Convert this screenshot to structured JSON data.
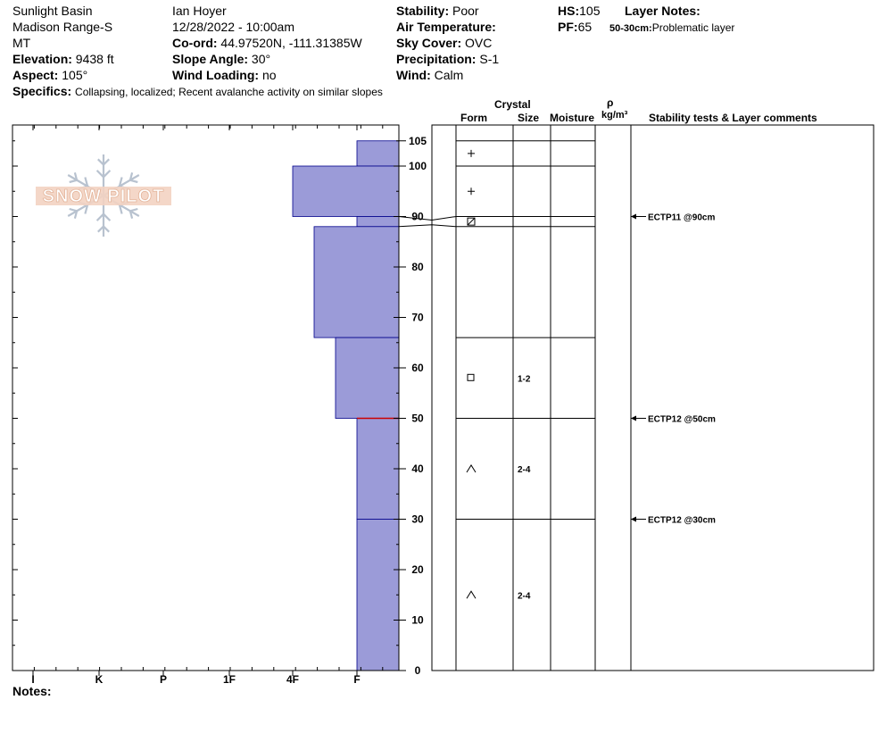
{
  "header": {
    "location": "Sunlight Basin",
    "range": "Madison Range-S",
    "state": "MT",
    "elevation_label": "Elevation:",
    "elevation_value": " 9438 ft",
    "aspect_label": "Aspect:",
    "aspect_value": " 105°",
    "specifics_label": "Specifics:",
    "specifics_value": "Collapsing, localized; Recent avalanche activity on similar slopes",
    "observer": "Ian Hoyer",
    "datetime": "12/28/2022 - 10:00am",
    "coord_label": "Co-ord:",
    "coord_value": " 44.97520N, -111.31385W",
    "slope_label": "Slope Angle:",
    "slope_value": " 30°",
    "wind_loading_label": "Wind Loading:",
    "wind_loading_value": " no",
    "stability_label": "Stability:",
    "stability_value": " Poor",
    "air_temp_label": "Air Temperature:",
    "sky_label": "Sky Cover:",
    "sky_value": " OVC",
    "precip_label": "Precipitation:",
    "precip_value": " S-1",
    "wind_label": "Wind:",
    "wind_value": "  Calm",
    "hs_label": "HS:",
    "hs_value": "105",
    "pf_label": "PF:",
    "pf_value": "65",
    "layer_notes_label": "Layer Notes:",
    "layer_note_range": "50-30cm:",
    "layer_note_text": "Problematic layer"
  },
  "logo_text": "SNOW PILOT",
  "notes_label": "Notes:",
  "columns": {
    "crystal": "Crystal",
    "form": "Form",
    "size": "Size",
    "moisture": "Moisture",
    "rho": "ρ",
    "density_unit": "kg/m³",
    "stability_tests": "Stability tests & Layer comments"
  },
  "colors": {
    "hardness_fill": "#9b9bd8",
    "hardness_stroke": "#00008b",
    "problem_line": "#cc0000"
  },
  "chart_data": {
    "type": "bar",
    "x_axis_hardness": [
      "I",
      "K",
      "P",
      "1F",
      "4F",
      "F"
    ],
    "depth_axis_ticks": [
      0,
      10,
      20,
      30,
      40,
      50,
      60,
      70,
      80,
      90,
      100,
      105
    ],
    "ylim": [
      0,
      105
    ],
    "hardness_bars": [
      {
        "top": 105,
        "bottom": 100,
        "hardness": "F"
      },
      {
        "top": 100,
        "bottom": 90,
        "hardness": "4F"
      },
      {
        "top": 90,
        "bottom": 88,
        "hardness": "F"
      },
      {
        "top": 88,
        "bottom": 66,
        "hardness": "4F-"
      },
      {
        "top": 66,
        "bottom": 50,
        "hardness": "F+"
      },
      {
        "top": 50,
        "bottom": 30,
        "hardness": "F"
      },
      {
        "top": 30,
        "bottom": 0,
        "hardness": "F"
      }
    ],
    "layer_boundaries": [
      105,
      100,
      90,
      88,
      66,
      50,
      30,
      0
    ],
    "grain_forms": [
      {
        "depth": 102.5,
        "form": "+",
        "size": ""
      },
      {
        "depth": 95,
        "form": "+",
        "size": ""
      },
      {
        "depth": 89,
        "form": "⊠",
        "size": ""
      },
      {
        "depth": 58,
        "form": "□",
        "size": "1-2"
      },
      {
        "depth": 40,
        "form": "^",
        "size": "2-4"
      },
      {
        "depth": 15,
        "form": "^",
        "size": "2-4"
      }
    ],
    "stability_tests": [
      {
        "depth": 90,
        "text": "ECTP11 @90cm"
      },
      {
        "depth": 50,
        "text": "ECTP12 @50cm"
      },
      {
        "depth": 30,
        "text": "ECTP12 @30cm"
      }
    ]
  }
}
